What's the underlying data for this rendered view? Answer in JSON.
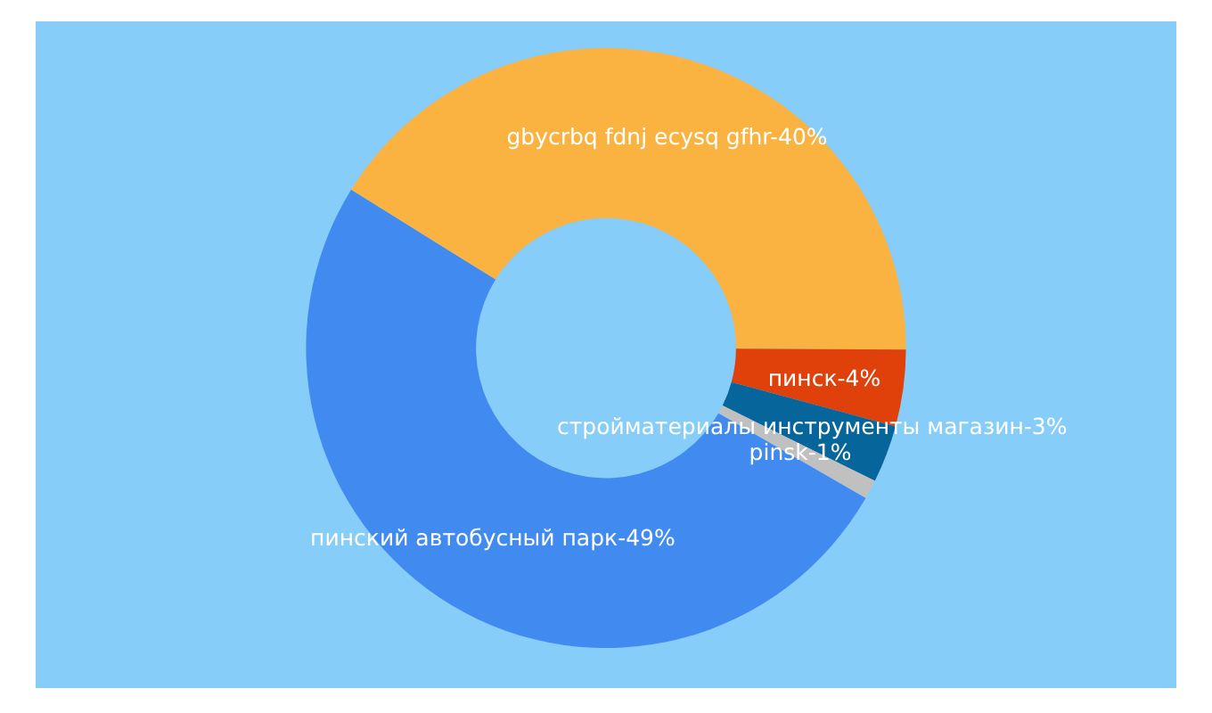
{
  "chart_data": {
    "type": "donut",
    "categories": [
      "пинский автобусный парк",
      "gbycrbq fdnj ecysq gfhr",
      "пинск",
      "стройматериалы инструменты магазин",
      "pinsk"
    ],
    "values": [
      49,
      40,
      4,
      3,
      1
    ],
    "colors": [
      "#418bf0",
      "#fab340",
      "#e0400a",
      "#06669b",
      "#c0c0c0"
    ],
    "value_labels": [
      "49%",
      "40%",
      "4%",
      "3%",
      "1%"
    ]
  }
}
